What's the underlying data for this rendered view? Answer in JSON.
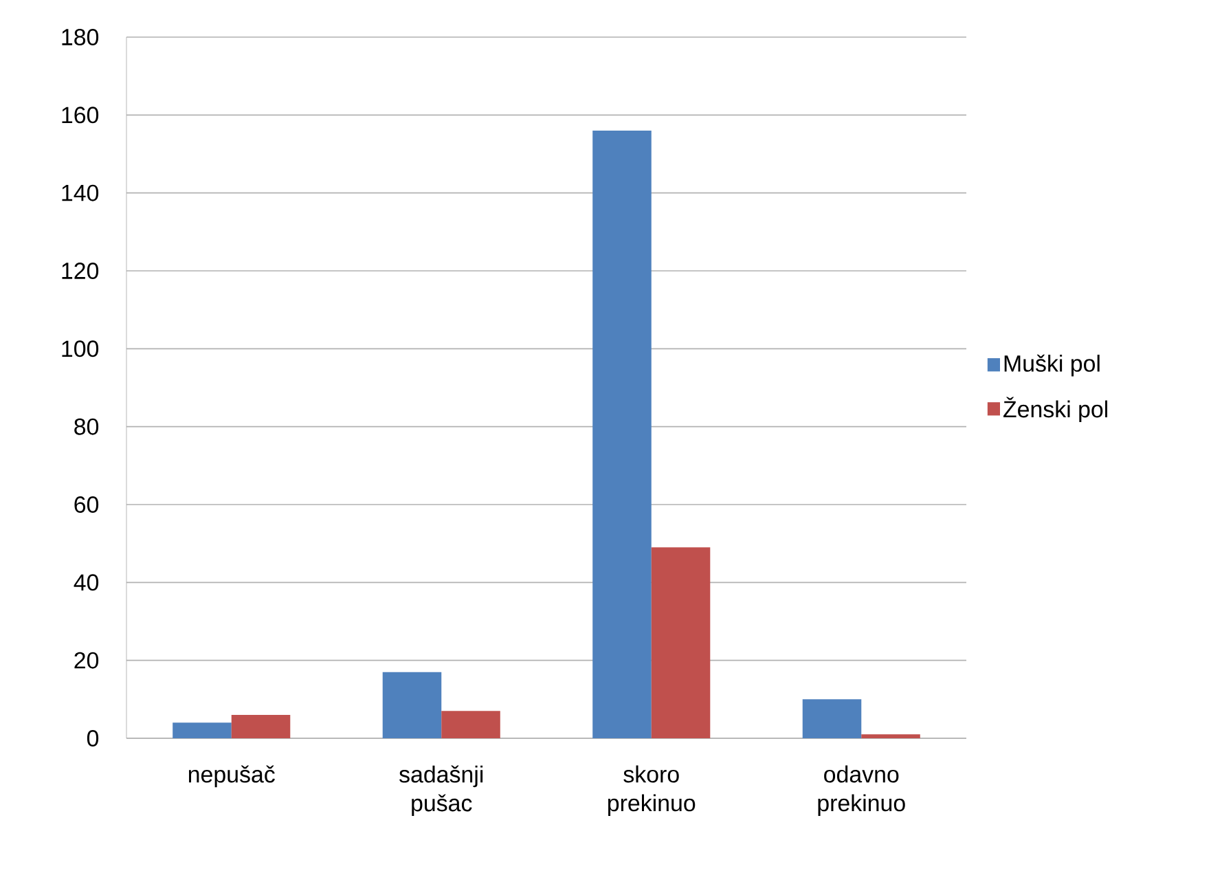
{
  "chart_data": {
    "type": "bar",
    "categories": [
      "nepušač",
      "sadašnji pušac",
      "skoro prekinuo",
      "odavno prekinuo"
    ],
    "series": [
      {
        "name": "Muški pol",
        "color": "#4f81bd",
        "values": [
          4,
          17,
          156,
          10
        ]
      },
      {
        "name": "Ženski pol",
        "color": "#c0504d",
        "values": [
          6,
          7,
          49,
          1
        ]
      }
    ],
    "ylim": [
      0,
      180
    ],
    "yticks": [
      0,
      20,
      40,
      60,
      80,
      100,
      120,
      140,
      160,
      180
    ],
    "grid": "y",
    "legend": "right"
  }
}
